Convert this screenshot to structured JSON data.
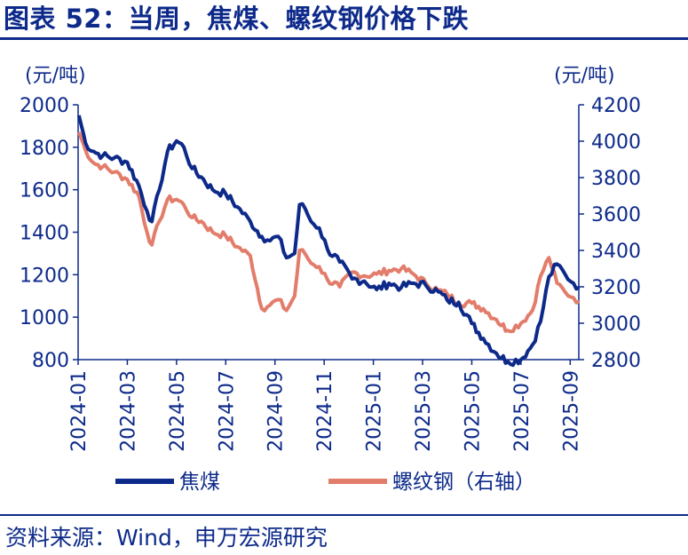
{
  "header": {
    "title": "图表 52：当周，焦煤、螺纹钢价格下跌"
  },
  "footer": {
    "source": "资料来源：Wind，申万宏源研究"
  },
  "colors": {
    "coking_coal": "#0d2a8a",
    "rebar": "#e37d6b",
    "axis": "#0d2a8a"
  },
  "chart_data": {
    "type": "line",
    "left_unit": "(元/吨)",
    "right_unit": "(元/吨)",
    "left_axis": {
      "ylim": [
        800,
        2000
      ],
      "ticks": [
        "800",
        "1000",
        "1200",
        "1400",
        "1600",
        "1800",
        "2000"
      ]
    },
    "right_axis": {
      "ylim": [
        2800,
        4200
      ],
      "ticks": [
        "2800",
        "3000",
        "3200",
        "3400",
        "3600",
        "3800",
        "4000",
        "4200"
      ]
    },
    "x_axis": {
      "xlim": [
        "2024-01",
        "2025-09"
      ],
      "ticks": [
        "2024-01",
        "2024-03",
        "2024-05",
        "2024-07",
        "2024-09",
        "2024-11",
        "2025-01",
        "2025-03",
        "2025-05",
        "2025-07",
        "2025-09"
      ]
    },
    "grid": false,
    "legend_position": "bottom",
    "series": [
      {
        "name": "焦煤",
        "axis": "left",
        "x": [
          "2024-01-02",
          "2024-01-10",
          "2024-01-20",
          "2024-02-01",
          "2024-02-15",
          "2024-03-01",
          "2024-03-15",
          "2024-03-25",
          "2024-04-01",
          "2024-04-10",
          "2024-04-20",
          "2024-05-01",
          "2024-05-10",
          "2024-05-20",
          "2024-06-01",
          "2024-06-15",
          "2024-07-01",
          "2024-07-15",
          "2024-08-01",
          "2024-08-15",
          "2024-08-25",
          "2024-09-05",
          "2024-09-15",
          "2024-09-25",
          "2024-10-01",
          "2024-10-08",
          "2024-10-15",
          "2024-10-25",
          "2024-11-05",
          "2024-11-20",
          "2024-12-05",
          "2024-12-20",
          "2025-01-05",
          "2025-01-20",
          "2025-02-05",
          "2025-02-20",
          "2025-03-05",
          "2025-03-20",
          "2025-04-01",
          "2025-04-15",
          "2025-05-01",
          "2025-05-15",
          "2025-06-01",
          "2025-06-15",
          "2025-07-01",
          "2025-07-15",
          "2025-07-25",
          "2025-08-05",
          "2025-08-15",
          "2025-08-25",
          "2025-09-05",
          "2025-09-12"
        ],
        "values": [
          1950,
          1820,
          1780,
          1760,
          1750,
          1730,
          1620,
          1500,
          1450,
          1600,
          1780,
          1830,
          1800,
          1700,
          1660,
          1600,
          1580,
          1520,
          1450,
          1380,
          1360,
          1380,
          1280,
          1300,
          1530,
          1510,
          1450,
          1420,
          1320,
          1260,
          1180,
          1170,
          1130,
          1160,
          1140,
          1160,
          1150,
          1120,
          1080,
          1070,
          970,
          900,
          830,
          790,
          800,
          870,
          980,
          1190,
          1250,
          1200,
          1160,
          1140
        ]
      },
      {
        "name": "螺纹钢（右轴）",
        "axis": "right",
        "x": [
          "2024-01-02",
          "2024-01-10",
          "2024-01-20",
          "2024-02-01",
          "2024-02-15",
          "2024-03-01",
          "2024-03-15",
          "2024-03-25",
          "2024-04-01",
          "2024-04-10",
          "2024-04-20",
          "2024-05-01",
          "2024-05-10",
          "2024-05-20",
          "2024-06-01",
          "2024-06-15",
          "2024-07-01",
          "2024-07-15",
          "2024-08-01",
          "2024-08-15",
          "2024-08-25",
          "2024-09-05",
          "2024-09-15",
          "2024-09-25",
          "2024-10-01",
          "2024-10-08",
          "2024-10-15",
          "2024-10-25",
          "2024-11-05",
          "2024-11-20",
          "2024-12-05",
          "2024-12-20",
          "2025-01-05",
          "2025-01-20",
          "2025-02-05",
          "2025-02-20",
          "2025-03-05",
          "2025-03-20",
          "2025-04-01",
          "2025-04-15",
          "2025-05-01",
          "2025-05-15",
          "2025-06-01",
          "2025-06-15",
          "2025-07-01",
          "2025-07-15",
          "2025-07-25",
          "2025-08-05",
          "2025-08-15",
          "2025-08-25",
          "2025-09-05",
          "2025-09-12"
        ],
        "values": [
          4050,
          3950,
          3880,
          3860,
          3830,
          3790,
          3700,
          3500,
          3430,
          3560,
          3680,
          3680,
          3650,
          3580,
          3560,
          3500,
          3480,
          3420,
          3370,
          3080,
          3100,
          3130,
          3070,
          3150,
          3400,
          3380,
          3330,
          3310,
          3240,
          3200,
          3280,
          3260,
          3270,
          3290,
          3300,
          3270,
          3220,
          3180,
          3160,
          3110,
          3110,
          3080,
          3020,
          2960,
          3000,
          3070,
          3260,
          3360,
          3220,
          3170,
          3140,
          3120
        ]
      }
    ]
  }
}
